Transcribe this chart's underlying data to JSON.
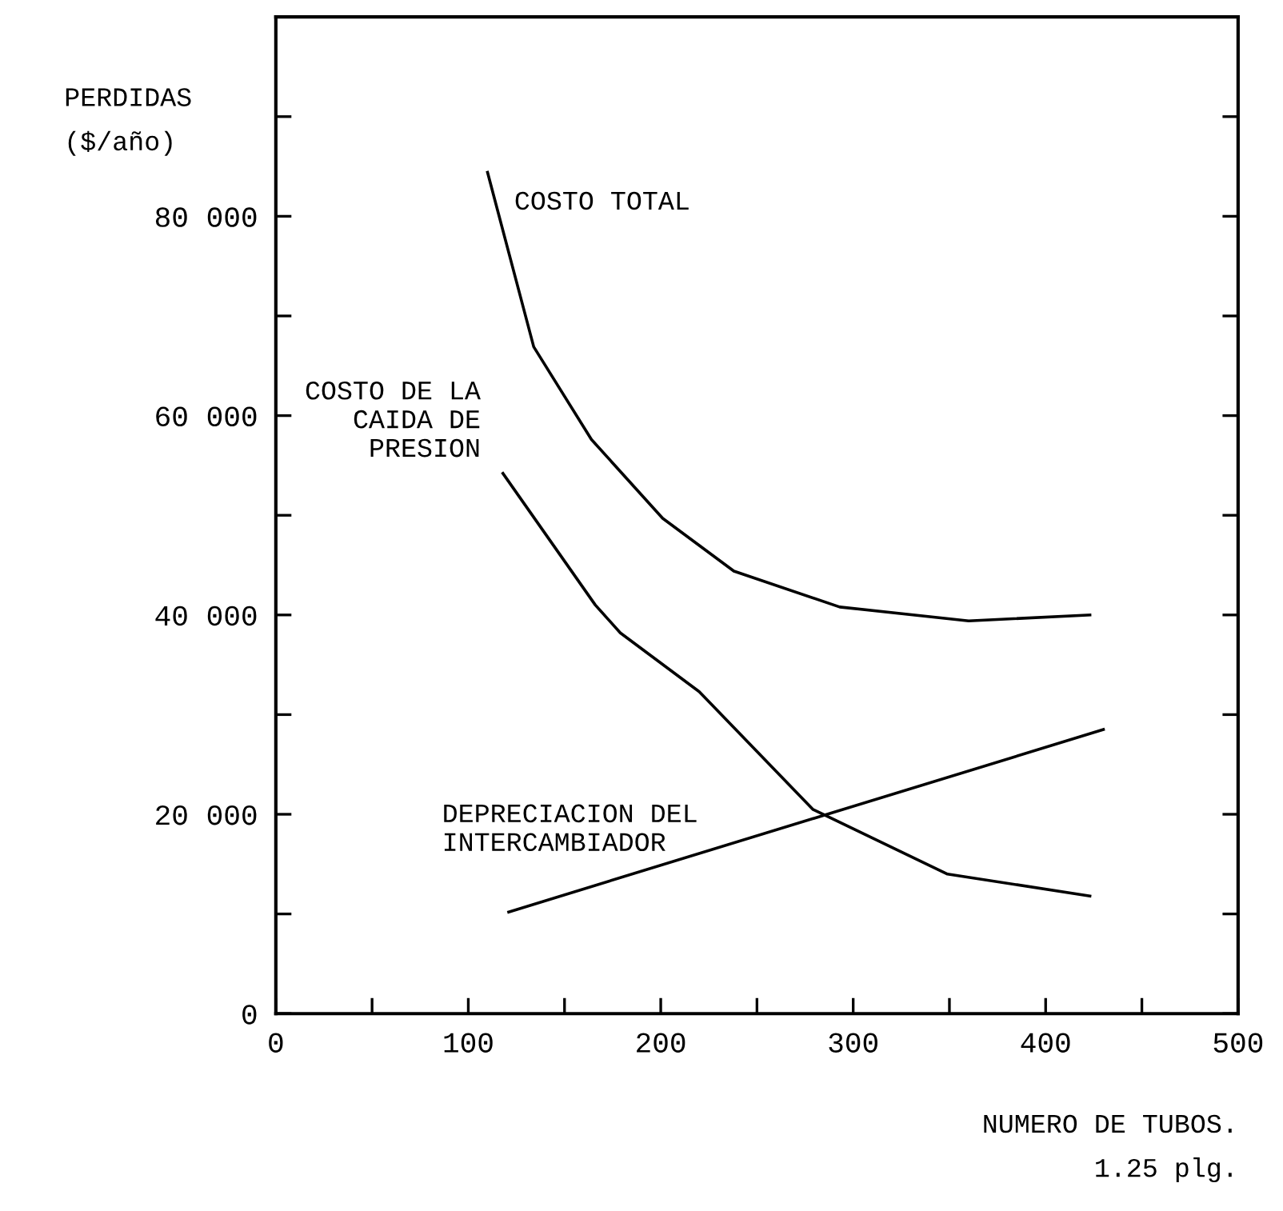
{
  "chart_data": {
    "type": "line",
    "xlabel": "NUMERO DE TUBOS.\n1.25 plg.",
    "ylabel": "PERDIDAS\n($/año)",
    "xlim": [
      0,
      500
    ],
    "ylim": [
      0,
      100000
    ],
    "xticks": [
      0,
      {
        "value": 50,
        "label": null
      },
      100,
      {
        "value": 150,
        "label": null
      },
      200,
      {
        "value": 250,
        "label": null
      },
      300,
      {
        "value": 350,
        "label": null
      },
      400,
      {
        "value": 450,
        "label": null
      },
      500
    ],
    "yticks": [
      {
        "value": 0,
        "label": "0"
      },
      {
        "value": 10000,
        "label": null
      },
      {
        "value": 20000,
        "label": "20 000"
      },
      {
        "value": 30000,
        "label": null
      },
      {
        "value": 40000,
        "label": "40 000"
      },
      {
        "value": 50000,
        "label": null
      },
      {
        "value": 60000,
        "label": "60 000"
      },
      {
        "value": 70000,
        "label": null
      },
      {
        "value": 80000,
        "label": "80 000"
      },
      {
        "value": 90000,
        "label": null
      },
      {
        "value": 100000,
        "label": null
      }
    ],
    "grid": false,
    "marker": "none",
    "line_style": "solid",
    "series": [
      {
        "name": "COSTO TOTAL",
        "color": "#000000",
        "x": [
          110,
          134,
          164,
          201,
          238,
          293,
          360,
          423
        ],
        "values": [
          84400,
          66900,
          57600,
          49700,
          44400,
          40800,
          39400,
          40000
        ]
      },
      {
        "name": "COSTO DE LA\nCAIDA DE\nPRESION",
        "color": "#000000",
        "x": [
          118,
          166,
          179,
          220,
          279,
          349,
          423
        ],
        "values": [
          54200,
          41000,
          38200,
          32300,
          20500,
          14000,
          11800
        ]
      },
      {
        "name": "DEPRECIACION DEL\nINTERCAMBIADOR",
        "color": "#000000",
        "x": [
          121,
          430
        ],
        "values": [
          10200,
          28500
        ]
      }
    ]
  }
}
